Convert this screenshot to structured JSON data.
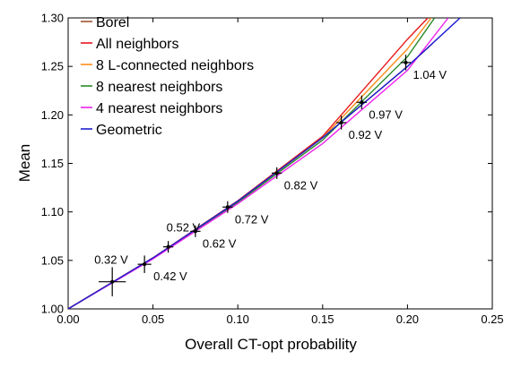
{
  "chart_data": {
    "type": "line",
    "xlabel": "Overall CT-opt probability",
    "ylabel": "Mean",
    "xlim": [
      0.0,
      0.25
    ],
    "ylim": [
      1.0,
      1.3
    ],
    "xticks": [
      "0.00",
      "0.05",
      "0.10",
      "0.15",
      "0.20",
      "0.25"
    ],
    "yticks": [
      "1.00",
      "1.05",
      "1.10",
      "1.15",
      "1.20",
      "1.25",
      "1.30"
    ],
    "grid": false,
    "legend_position": "top-left",
    "series": [
      {
        "name": "Borel",
        "color": "#a0522d",
        "x": [
          0,
          0.05,
          0.1,
          0.15,
          0.2,
          0.215
        ],
        "y": [
          1.0,
          1.0526,
          1.1111,
          1.1765,
          1.25,
          1.2739
        ]
      },
      {
        "name": "All neighbors",
        "color": "#e8181c",
        "x": [
          0,
          0.05,
          0.1,
          0.15,
          0.2,
          0.212
        ],
        "y": [
          1.0,
          1.0527,
          1.1115,
          1.178,
          1.278,
          1.3
        ]
      },
      {
        "name": "8 L-connected neighbors",
        "color": "#ff8c1a",
        "x": [
          0,
          0.05,
          0.1,
          0.15,
          0.2,
          0.214
        ],
        "y": [
          1.0,
          1.0524,
          1.1108,
          1.1765,
          1.268,
          1.3
        ]
      },
      {
        "name": "8 nearest neighbors",
        "color": "#2a8a2a",
        "x": [
          0,
          0.05,
          0.1,
          0.15,
          0.2,
          0.216
        ],
        "y": [
          1.0,
          1.0521,
          1.1098,
          1.174,
          1.26,
          1.3
        ]
      },
      {
        "name": "4 nearest neighbors",
        "color": "#ee22ee",
        "x": [
          0,
          0.05,
          0.1,
          0.15,
          0.2,
          0.224
        ],
        "y": [
          1.0,
          1.0515,
          1.1085,
          1.1705,
          1.246,
          1.3
        ]
      },
      {
        "name": "Geometric",
        "color": "#1f1fd0",
        "x": [
          0,
          0.05,
          0.1,
          0.15,
          0.2,
          0.231
        ],
        "y": [
          1.0,
          1.0526,
          1.1111,
          1.1765,
          1.25,
          1.3
        ]
      }
    ],
    "measurements": {
      "points": [
        {
          "label": "0.32 V",
          "x": 0.026,
          "y": 1.028,
          "xerr": 0.008,
          "yerr": 0.015
        },
        {
          "label": "0.42 V",
          "x": 0.045,
          "y": 1.046,
          "xerr": 0.004,
          "yerr": 0.009
        },
        {
          "label": "0.52 V",
          "x": 0.059,
          "y": 1.064,
          "xerr": 0.003,
          "yerr": 0.006
        },
        {
          "label": "0.62 V",
          "x": 0.075,
          "y": 1.08,
          "xerr": 0.003,
          "yerr": 0.006
        },
        {
          "label": "0.72 V",
          "x": 0.094,
          "y": 1.105,
          "xerr": 0.003,
          "yerr": 0.006
        },
        {
          "label": "0.82 V",
          "x": 0.123,
          "y": 1.14,
          "xerr": 0.003,
          "yerr": 0.006
        },
        {
          "label": "0.92 V",
          "x": 0.161,
          "y": 1.192,
          "xerr": 0.003,
          "yerr": 0.007
        },
        {
          "label": "0.97 V",
          "x": 0.173,
          "y": 1.213,
          "xerr": 0.003,
          "yerr": 0.007
        },
        {
          "label": "1.04 V",
          "x": 0.199,
          "y": 1.254,
          "xerr": 0.003,
          "yerr": 0.008
        }
      ]
    }
  }
}
